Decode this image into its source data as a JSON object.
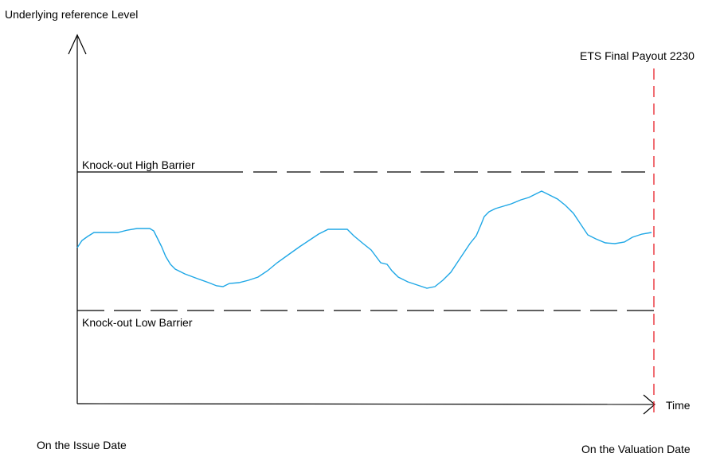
{
  "labels": {
    "y_axis": "Underlying reference Level",
    "x_axis": "Time",
    "final_payout": "ETS Final Payout 2230",
    "high_barrier": "Knock-out High Barrier",
    "low_barrier": "Knock-out Low Barrier",
    "issue_date": "On the Issue Date",
    "valuation_date": "On the Valuation Date"
  },
  "colors": {
    "axes": "#000000",
    "barrier_lines": "#000000",
    "payout_line": "#e8202a",
    "underlying_path": "#1ea7e6"
  }
}
